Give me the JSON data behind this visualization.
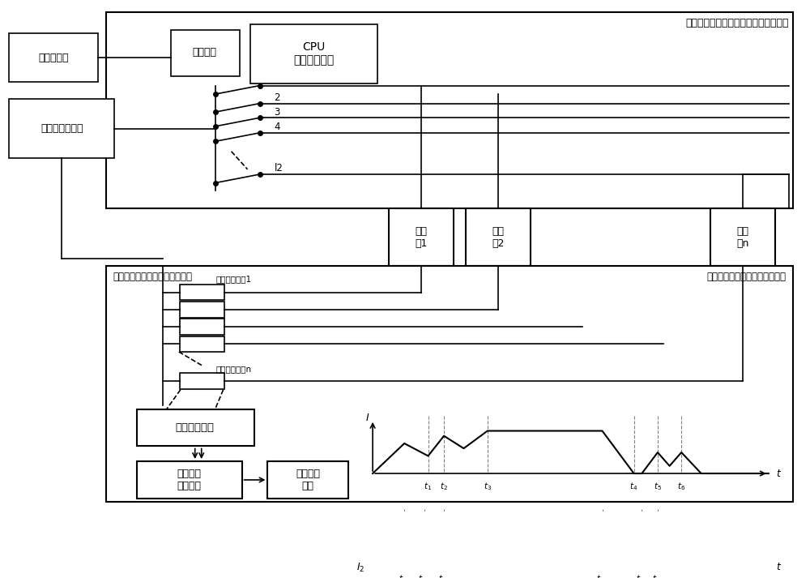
{
  "title_calibrator": "发动机指令与控制匹配性测试仪校准器",
  "title_tester_top": "发动机指令与控制匹配性测试仪",
  "title_tester_bottom": "发动机指令与控制匹配性测试仪",
  "box_cejikongji": "测控计算机",
  "box_tongxin": "通信接口",
  "box_cpu": "CPU\n时序控制中心",
  "box_power": "大功率直流电源",
  "box_solenoid1": "电磁\n阀1",
  "box_solenoid2": "电磁\n阀2",
  "box_solenoidn": "电磁\n阀n",
  "label_resistor1": "电流采样电阻1",
  "label_resistorn": "电流采样电阻n",
  "box_signal": "信号调理单元",
  "box_highspeed": "高速数据\n采集单元",
  "box_dataanalysis": "数据分析\n单元",
  "bg_color": "#ffffff",
  "line_color": "#000000"
}
